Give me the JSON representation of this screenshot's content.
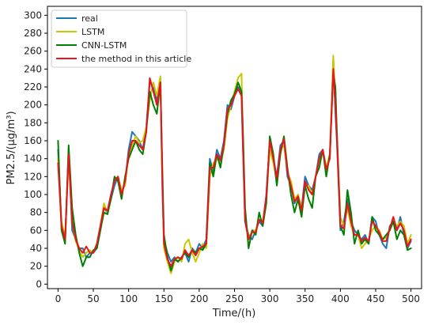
{
  "chart_data": {
    "type": "line",
    "xlabel": "Time/(h)",
    "ylabel": "PM2.5/(μg/m³)",
    "xlim": [
      -15,
      515
    ],
    "ylim": [
      -5,
      310
    ],
    "xticks": [
      0,
      50,
      100,
      150,
      200,
      250,
      300,
      350,
      400,
      450,
      500
    ],
    "yticks": [
      0,
      20,
      40,
      60,
      80,
      100,
      120,
      140,
      160,
      180,
      200,
      220,
      240,
      260,
      280,
      300
    ],
    "legend_position": "top-left",
    "grid": false,
    "series": [
      {
        "name": "real",
        "color": "#1f77b4",
        "x": [
          0,
          5,
          10,
          15,
          20,
          25,
          30,
          35,
          40,
          45,
          50,
          55,
          60,
          65,
          70,
          75,
          80,
          85,
          90,
          95,
          100,
          105,
          110,
          115,
          120,
          125,
          130,
          135,
          140,
          145,
          148,
          150,
          155,
          160,
          165,
          170,
          175,
          180,
          185,
          190,
          195,
          200,
          205,
          210,
          215,
          220,
          225,
          230,
          235,
          240,
          245,
          250,
          255,
          260,
          262,
          265,
          270,
          275,
          280,
          285,
          290,
          295,
          300,
          305,
          310,
          315,
          320,
          325,
          330,
          335,
          340,
          345,
          350,
          355,
          360,
          365,
          370,
          375,
          380,
          385,
          390,
          393,
          395,
          400,
          405,
          410,
          415,
          420,
          425,
          430,
          435,
          440,
          445,
          450,
          455,
          460,
          465,
          470,
          475,
          480,
          485,
          490,
          495,
          500
        ],
        "y": [
          150,
          65,
          50,
          150,
          60,
          50,
          40,
          40,
          30,
          35,
          35,
          40,
          60,
          85,
          80,
          95,
          110,
          120,
          100,
          115,
          150,
          170,
          165,
          160,
          150,
          175,
          225,
          220,
          205,
          230,
          100,
          50,
          35,
          25,
          30,
          25,
          30,
          35,
          25,
          40,
          35,
          45,
          40,
          50,
          140,
          125,
          150,
          140,
          160,
          200,
          195,
          210,
          220,
          210,
          150,
          70,
          55,
          50,
          60,
          70,
          65,
          100,
          160,
          140,
          120,
          155,
          160,
          120,
          110,
          90,
          100,
          85,
          120,
          110,
          105,
          120,
          145,
          150,
          130,
          140,
          250,
          190,
          160,
          60,
          70,
          95,
          70,
          60,
          55,
          50,
          55,
          45,
          75,
          70,
          55,
          45,
          40,
          65,
          70,
          60,
          75,
          55,
          40,
          48
        ]
      },
      {
        "name": "LSTM",
        "color": "#c8c800",
        "x": [
          0,
          5,
          10,
          15,
          20,
          25,
          30,
          35,
          40,
          45,
          50,
          55,
          60,
          65,
          70,
          75,
          80,
          85,
          90,
          95,
          100,
          105,
          110,
          115,
          120,
          125,
          130,
          135,
          140,
          145,
          148,
          150,
          155,
          160,
          165,
          170,
          175,
          180,
          185,
          190,
          195,
          200,
          205,
          210,
          215,
          220,
          225,
          230,
          235,
          240,
          245,
          250,
          255,
          260,
          262,
          265,
          270,
          275,
          280,
          285,
          290,
          295,
          300,
          305,
          310,
          315,
          320,
          325,
          330,
          335,
          340,
          345,
          350,
          355,
          360,
          365,
          370,
          375,
          380,
          385,
          390,
          393,
          395,
          400,
          405,
          410,
          415,
          420,
          425,
          430,
          435,
          440,
          445,
          450,
          455,
          460,
          465,
          470,
          475,
          480,
          485,
          490,
          495,
          500
        ],
        "y": [
          140,
          70,
          52,
          140,
          70,
          48,
          38,
          30,
          35,
          38,
          35,
          45,
          65,
          90,
          80,
          100,
          115,
          120,
          105,
          110,
          145,
          155,
          165,
          158,
          160,
          175,
          205,
          225,
          210,
          232,
          110,
          40,
          25,
          12,
          25,
          30,
          25,
          45,
          50,
          35,
          25,
          35,
          45,
          40,
          120,
          135,
          140,
          135,
          150,
          185,
          200,
          215,
          230,
          235,
          160,
          75,
          50,
          60,
          60,
          72,
          70,
          95,
          150,
          135,
          115,
          150,
          155,
          125,
          115,
          95,
          100,
          85,
          110,
          110,
          100,
          120,
          140,
          150,
          130,
          145,
          255,
          205,
          170,
          75,
          65,
          85,
          65,
          55,
          55,
          40,
          45,
          50,
          60,
          65,
          60,
          50,
          52,
          60,
          70,
          65,
          70,
          65,
          45,
          55
        ]
      },
      {
        "name": "CNN-LSTM",
        "color": "#008000",
        "x": [
          0,
          5,
          10,
          15,
          20,
          25,
          30,
          35,
          40,
          45,
          50,
          55,
          60,
          65,
          70,
          75,
          80,
          85,
          90,
          95,
          100,
          105,
          110,
          115,
          120,
          125,
          130,
          135,
          140,
          145,
          148,
          150,
          155,
          160,
          165,
          170,
          175,
          180,
          185,
          190,
          195,
          200,
          205,
          210,
          215,
          220,
          225,
          230,
          235,
          240,
          245,
          250,
          255,
          260,
          262,
          265,
          270,
          275,
          280,
          285,
          290,
          295,
          300,
          305,
          310,
          315,
          320,
          325,
          330,
          335,
          340,
          345,
          350,
          355,
          360,
          365,
          370,
          375,
          380,
          385,
          390,
          393,
          395,
          400,
          405,
          410,
          415,
          420,
          425,
          430,
          435,
          440,
          445,
          450,
          455,
          460,
          465,
          470,
          475,
          480,
          485,
          490,
          495,
          500
        ],
        "y": [
          160,
          60,
          45,
          155,
          85,
          55,
          35,
          20,
          30,
          30,
          38,
          40,
          60,
          80,
          78,
          95,
          120,
          115,
          95,
          120,
          140,
          150,
          160,
          150,
          145,
          170,
          215,
          200,
          190,
          225,
          120,
          55,
          30,
          15,
          28,
          25,
          30,
          35,
          30,
          38,
          35,
          40,
          38,
          45,
          135,
          120,
          145,
          130,
          155,
          190,
          205,
          212,
          225,
          215,
          170,
          85,
          40,
          60,
          55,
          80,
          65,
          90,
          165,
          145,
          110,
          145,
          165,
          130,
          100,
          80,
          95,
          75,
          110,
          95,
          85,
          120,
          130,
          150,
          120,
          145,
          235,
          220,
          170,
          65,
          55,
          105,
          80,
          45,
          60,
          45,
          50,
          45,
          75,
          60,
          55,
          50,
          55,
          60,
          70,
          50,
          60,
          55,
          38,
          40
        ]
      },
      {
        "name": "the method in this article",
        "color": "#e8141e",
        "x": [
          0,
          5,
          10,
          15,
          20,
          25,
          30,
          35,
          40,
          45,
          50,
          55,
          60,
          65,
          70,
          75,
          80,
          85,
          90,
          95,
          100,
          105,
          110,
          115,
          120,
          125,
          130,
          135,
          140,
          145,
          148,
          150,
          155,
          160,
          165,
          170,
          175,
          180,
          185,
          190,
          195,
          200,
          205,
          210,
          215,
          220,
          225,
          230,
          235,
          240,
          245,
          250,
          255,
          260,
          262,
          265,
          270,
          275,
          280,
          285,
          290,
          295,
          300,
          305,
          310,
          315,
          320,
          325,
          330,
          335,
          340,
          345,
          350,
          355,
          360,
          365,
          370,
          375,
          380,
          385,
          390,
          393,
          395,
          400,
          405,
          410,
          415,
          420,
          425,
          430,
          435,
          440,
          445,
          450,
          455,
          460,
          465,
          470,
          475,
          480,
          485,
          490,
          495,
          500
        ],
        "y": [
          135,
          65,
          50,
          145,
          70,
          50,
          40,
          35,
          42,
          35,
          35,
          45,
          65,
          85,
          82,
          100,
          115,
          120,
          100,
          115,
          145,
          160,
          160,
          155,
          150,
          170,
          230,
          215,
          200,
          225,
          105,
          45,
          28,
          20,
          28,
          30,
          28,
          38,
          32,
          38,
          32,
          40,
          42,
          45,
          130,
          130,
          145,
          138,
          155,
          195,
          200,
          210,
          218,
          210,
          155,
          70,
          50,
          58,
          58,
          72,
          68,
          98,
          160,
          140,
          118,
          150,
          162,
          125,
          110,
          92,
          98,
          82,
          115,
          105,
          100,
          120,
          140,
          150,
          128,
          140,
          240,
          200,
          165,
          65,
          62,
          90,
          70,
          55,
          55,
          48,
          52,
          48,
          70,
          65,
          58,
          48,
          48,
          62,
          75,
          60,
          68,
          60,
          42,
          50
        ]
      }
    ]
  }
}
